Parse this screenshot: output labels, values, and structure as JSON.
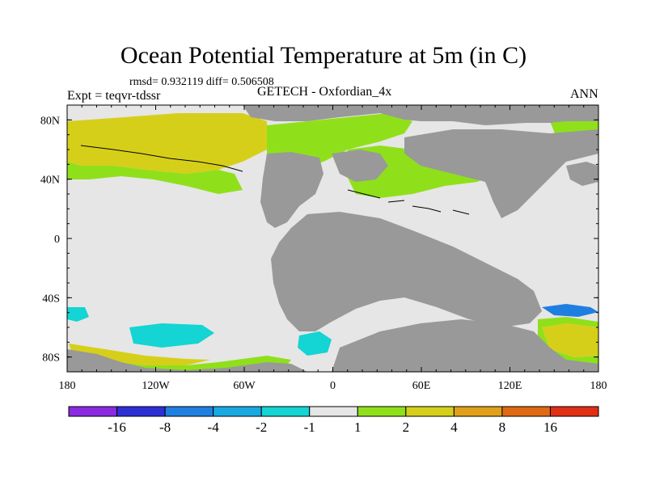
{
  "title": "Ocean Potential Temperature at 5m (in C)",
  "stats_text": "rmsd= 0.932119 diff= 0.506508",
  "expt_text": "Expt = teqvr-tdssr",
  "model_text": "GETECH - Oxfordian_4x",
  "season_text": "ANN",
  "map": {
    "lon_ticks": [
      "180",
      "120W",
      "60W",
      "0",
      "60E",
      "120E",
      "180"
    ],
    "lat_ticks": [
      "80N",
      "40N",
      "0",
      "40S",
      "80S"
    ],
    "lon_values": [
      -180,
      -120,
      -60,
      0,
      60,
      120,
      180
    ],
    "lat_values": [
      80,
      40,
      0,
      -40,
      -80
    ],
    "lon_range": [
      -180,
      180
    ],
    "lat_range": [
      -90,
      90
    ],
    "land_color": "#999999",
    "background_value_color": "#e6e6e6"
  },
  "colorbar": {
    "labels": [
      "-16",
      "-8",
      "-4",
      "-2",
      "-1",
      "1",
      "2",
      "4",
      "8",
      "16"
    ],
    "colors": [
      "#8a2be2",
      "#2f2fd6",
      "#1f7fe0",
      "#19a9e2",
      "#14d4d4",
      "#e6e6e6",
      "#8fe01a",
      "#d6cf1a",
      "#e0a019",
      "#e06a14",
      "#e02f14"
    ]
  }
}
